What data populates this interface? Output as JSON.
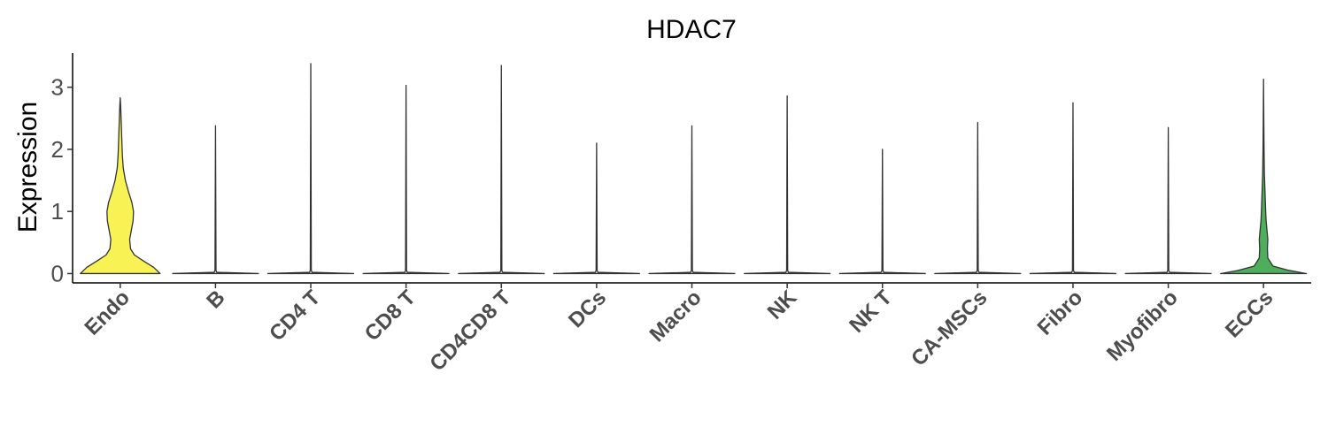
{
  "chart_data": {
    "type": "violin",
    "title": "HDAC7",
    "xlabel": "",
    "ylabel": "Expression",
    "ylim": [
      -0.15,
      3.55
    ],
    "yticks": [
      0,
      1,
      2,
      3
    ],
    "grid": false,
    "legend": "none",
    "categories": [
      "Endo",
      "B",
      "CD4 T",
      "CD8 T",
      "CD4CD8 T",
      "DCs",
      "Macro",
      "NK",
      "NK T",
      "CA-MSCs",
      "Fibro",
      "Myofibro",
      "ECCs"
    ],
    "series": [
      {
        "category": "Endo",
        "max": 2.83,
        "color": "#F9F254",
        "density": [
          [
            0,
            0.93
          ],
          [
            0.1,
            0.78
          ],
          [
            0.2,
            0.55
          ],
          [
            0.3,
            0.33
          ],
          [
            0.4,
            0.24
          ],
          [
            0.55,
            0.22
          ],
          [
            0.7,
            0.26
          ],
          [
            0.85,
            0.3
          ],
          [
            1.0,
            0.31
          ],
          [
            1.15,
            0.27
          ],
          [
            1.3,
            0.2
          ],
          [
            1.5,
            0.12
          ],
          [
            1.7,
            0.07
          ],
          [
            1.9,
            0.05
          ],
          [
            2.1,
            0.04
          ],
          [
            2.3,
            0.03
          ],
          [
            2.5,
            0.02
          ],
          [
            2.7,
            0.01
          ],
          [
            2.83,
            0
          ]
        ]
      },
      {
        "category": "B",
        "max": 2.38,
        "color": "#E8E8E8",
        "density": [
          [
            0,
            1.0
          ],
          [
            0.02,
            0.03
          ],
          [
            0.05,
            0.012
          ],
          [
            2.38,
            0
          ]
        ]
      },
      {
        "category": "CD4 T",
        "max": 3.38,
        "color": "#E8E8E8",
        "density": [
          [
            0,
            1.0
          ],
          [
            0.02,
            0.03
          ],
          [
            0.05,
            0.012
          ],
          [
            3.38,
            0
          ]
        ]
      },
      {
        "category": "CD8 T",
        "max": 3.03,
        "color": "#E8E8E8",
        "density": [
          [
            0,
            1.0
          ],
          [
            0.02,
            0.03
          ],
          [
            0.05,
            0.012
          ],
          [
            3.03,
            0
          ]
        ]
      },
      {
        "category": "CD4CD8 T",
        "max": 3.35,
        "color": "#E8E8E8",
        "density": [
          [
            0,
            1.0
          ],
          [
            0.02,
            0.03
          ],
          [
            0.05,
            0.012
          ],
          [
            3.35,
            0
          ]
        ]
      },
      {
        "category": "DCs",
        "max": 2.1,
        "color": "#E8E8E8",
        "density": [
          [
            0,
            1.0
          ],
          [
            0.02,
            0.03
          ],
          [
            0.05,
            0.012
          ],
          [
            2.1,
            0
          ]
        ]
      },
      {
        "category": "Macro",
        "max": 2.38,
        "color": "#E8E8E8",
        "density": [
          [
            0,
            1.0
          ],
          [
            0.02,
            0.03
          ],
          [
            0.05,
            0.012
          ],
          [
            2.38,
            0
          ]
        ]
      },
      {
        "category": "NK",
        "max": 2.86,
        "color": "#E8E8E8",
        "density": [
          [
            0,
            1.0
          ],
          [
            0.02,
            0.03
          ],
          [
            0.05,
            0.012
          ],
          [
            2.86,
            0
          ]
        ]
      },
      {
        "category": "NK T",
        "max": 2.0,
        "color": "#E8E8E8",
        "density": [
          [
            0,
            1.0
          ],
          [
            0.02,
            0.03
          ],
          [
            0.05,
            0.012
          ],
          [
            2.0,
            0
          ]
        ]
      },
      {
        "category": "CA-MSCs",
        "max": 2.43,
        "color": "#E8E8E8",
        "density": [
          [
            0,
            1.0
          ],
          [
            0.02,
            0.03
          ],
          [
            0.05,
            0.012
          ],
          [
            2.43,
            0
          ]
        ]
      },
      {
        "category": "Fibro",
        "max": 2.75,
        "color": "#E8E8E8",
        "density": [
          [
            0,
            1.0
          ],
          [
            0.02,
            0.03
          ],
          [
            0.05,
            0.012
          ],
          [
            2.75,
            0
          ]
        ]
      },
      {
        "category": "Myofibro",
        "max": 2.35,
        "color": "#E8E8E8",
        "density": [
          [
            0,
            1.0
          ],
          [
            0.02,
            0.03
          ],
          [
            0.05,
            0.012
          ],
          [
            2.35,
            0
          ]
        ]
      },
      {
        "category": "ECCs",
        "max": 3.13,
        "color": "#4DAF5C",
        "density": [
          [
            0,
            1.0
          ],
          [
            0.05,
            0.6
          ],
          [
            0.12,
            0.22
          ],
          [
            0.25,
            0.1
          ],
          [
            0.4,
            0.09
          ],
          [
            0.55,
            0.1
          ],
          [
            0.7,
            0.08
          ],
          [
            0.85,
            0.06
          ],
          [
            1.0,
            0.05
          ],
          [
            1.2,
            0.04
          ],
          [
            1.4,
            0.03
          ],
          [
            1.6,
            0.02
          ],
          [
            2.0,
            0.012
          ],
          [
            2.5,
            0.006
          ],
          [
            3.13,
            0
          ]
        ]
      }
    ]
  }
}
